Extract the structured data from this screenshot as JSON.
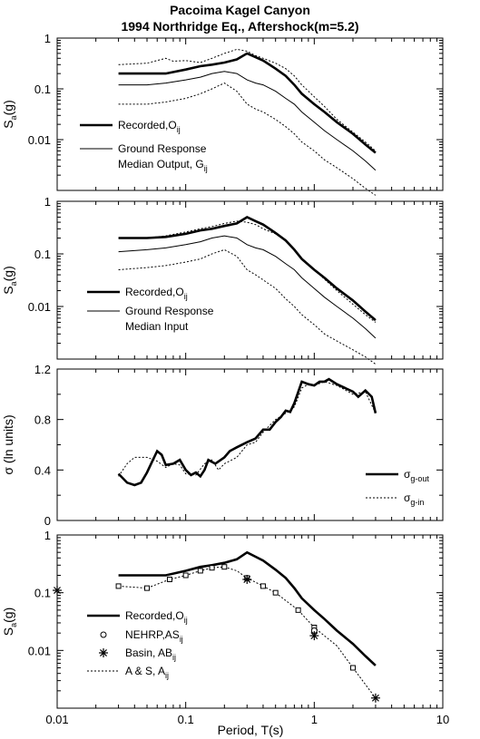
{
  "title_line1": "Pacoima Kagel Canyon",
  "title_line2": "1994 Northridge Eq., Aftershock(m=5.2)",
  "x_axis": {
    "label": "Period, T(s)",
    "scale": "log",
    "range": [
      0.01,
      10
    ],
    "tick_labels": [
      "0.01",
      "0.1",
      "1",
      "10"
    ]
  },
  "chart_data": [
    {
      "type": "line",
      "y_scale": "log",
      "ylim": [
        0.001,
        1
      ],
      "ylabel_base": "S",
      "ylabel_sub": "a",
      "ylabel_tail": "(g)",
      "y_tick_labels": [
        "1",
        "0.1",
        "0.01"
      ],
      "legend": [
        {
          "line1": "Recorded,O",
          "line1_sub": "ij",
          "line2": "",
          "line2_sub": ""
        },
        {
          "line1": "Ground Response",
          "line1_sub": "",
          "line2": "Median Output, G",
          "line2_sub": "ij"
        }
      ],
      "series": [
        {
          "style": "bold",
          "x": [
            0.03,
            0.05,
            0.07,
            0.1,
            0.13,
            0.16,
            0.2,
            0.25,
            0.3,
            0.35,
            0.4,
            0.5,
            0.6,
            0.7,
            0.8,
            1,
            1.2,
            1.5,
            2,
            2.5,
            3
          ],
          "y": [
            0.2,
            0.2,
            0.2,
            0.24,
            0.28,
            0.3,
            0.33,
            0.38,
            0.5,
            0.42,
            0.36,
            0.25,
            0.18,
            0.12,
            0.08,
            0.05,
            0.035,
            0.022,
            0.013,
            0.008,
            0.0055
          ]
        },
        {
          "style": "thin",
          "x": [
            0.03,
            0.05,
            0.07,
            0.1,
            0.13,
            0.16,
            0.2,
            0.25,
            0.3,
            0.35,
            0.4,
            0.5,
            0.6,
            0.7,
            0.8,
            1,
            1.2,
            1.5,
            2,
            2.5,
            3
          ],
          "y": [
            0.12,
            0.12,
            0.13,
            0.15,
            0.17,
            0.2,
            0.22,
            0.2,
            0.15,
            0.13,
            0.12,
            0.09,
            0.065,
            0.05,
            0.035,
            0.022,
            0.015,
            0.01,
            0.006,
            0.0038,
            0.0025
          ]
        },
        {
          "style": "dotted",
          "x": [
            0.03,
            0.05,
            0.07,
            0.08,
            0.1,
            0.13,
            0.16,
            0.2,
            0.25,
            0.3,
            0.35,
            0.4,
            0.5,
            0.6,
            0.7,
            0.8,
            1,
            1.2,
            1.5,
            2,
            2.5,
            3
          ],
          "y": [
            0.3,
            0.32,
            0.4,
            0.35,
            0.36,
            0.33,
            0.4,
            0.5,
            0.6,
            0.55,
            0.45,
            0.4,
            0.32,
            0.25,
            0.18,
            0.12,
            0.07,
            0.045,
            0.025,
            0.014,
            0.009,
            0.006
          ]
        },
        {
          "style": "dotted",
          "x": [
            0.03,
            0.05,
            0.07,
            0.1,
            0.13,
            0.16,
            0.2,
            0.25,
            0.3,
            0.35,
            0.4,
            0.5,
            0.6,
            0.7,
            0.8,
            1,
            1.2,
            1.5,
            2,
            2.5,
            3
          ],
          "y": [
            0.05,
            0.05,
            0.055,
            0.065,
            0.08,
            0.1,
            0.13,
            0.09,
            0.05,
            0.04,
            0.035,
            0.025,
            0.018,
            0.013,
            0.009,
            0.006,
            0.004,
            0.0028,
            0.0017,
            0.0011,
            0.0008
          ]
        }
      ]
    },
    {
      "type": "line",
      "y_scale": "log",
      "ylim": [
        0.001,
        1
      ],
      "ylabel_base": "S",
      "ylabel_sub": "a",
      "ylabel_tail": "(g)",
      "y_tick_labels": [
        "1",
        "0.1",
        "0.01"
      ],
      "legend": [
        {
          "line1": "Recorded,O",
          "line1_sub": "ij",
          "line2": "",
          "line2_sub": ""
        },
        {
          "line1": "Ground Response",
          "line1_sub": "",
          "line2": "Median Input",
          "line2_sub": ""
        }
      ],
      "series": [
        {
          "style": "bold",
          "x": [
            0.03,
            0.05,
            0.07,
            0.1,
            0.13,
            0.16,
            0.2,
            0.25,
            0.3,
            0.35,
            0.4,
            0.5,
            0.6,
            0.7,
            0.8,
            1,
            1.2,
            1.5,
            2,
            2.5,
            3
          ],
          "y": [
            0.2,
            0.2,
            0.21,
            0.24,
            0.28,
            0.3,
            0.34,
            0.38,
            0.5,
            0.42,
            0.36,
            0.25,
            0.18,
            0.12,
            0.08,
            0.05,
            0.035,
            0.022,
            0.013,
            0.008,
            0.0055
          ]
        },
        {
          "style": "thin",
          "x": [
            0.03,
            0.05,
            0.07,
            0.1,
            0.13,
            0.16,
            0.2,
            0.25,
            0.3,
            0.35,
            0.4,
            0.5,
            0.6,
            0.7,
            0.8,
            1,
            1.2,
            1.5,
            2,
            2.5,
            3
          ],
          "y": [
            0.11,
            0.12,
            0.13,
            0.15,
            0.17,
            0.2,
            0.22,
            0.2,
            0.15,
            0.13,
            0.12,
            0.09,
            0.065,
            0.05,
            0.035,
            0.022,
            0.015,
            0.01,
            0.006,
            0.0038,
            0.0025
          ]
        },
        {
          "style": "dotted",
          "x": [
            0.03,
            0.05,
            0.07,
            0.1,
            0.13,
            0.16,
            0.2,
            0.25,
            0.3,
            0.35,
            0.4,
            0.5,
            0.6,
            0.7,
            0.8,
            1,
            1.2,
            1.5,
            2,
            2.5,
            3
          ],
          "y": [
            0.2,
            0.2,
            0.22,
            0.26,
            0.3,
            0.33,
            0.38,
            0.42,
            0.4,
            0.36,
            0.3,
            0.24,
            0.18,
            0.12,
            0.08,
            0.05,
            0.033,
            0.02,
            0.011,
            0.007,
            0.005
          ]
        },
        {
          "style": "dotted",
          "x": [
            0.03,
            0.05,
            0.07,
            0.1,
            0.13,
            0.16,
            0.2,
            0.25,
            0.3,
            0.35,
            0.4,
            0.5,
            0.6,
            0.7,
            0.8,
            1,
            1.2,
            1.5,
            2,
            2.5,
            3
          ],
          "y": [
            0.05,
            0.055,
            0.06,
            0.07,
            0.08,
            0.1,
            0.12,
            0.09,
            0.05,
            0.04,
            0.032,
            0.022,
            0.014,
            0.01,
            0.007,
            0.0045,
            0.003,
            0.0022,
            0.0015,
            0.0011,
            0.0008
          ]
        }
      ]
    },
    {
      "type": "line",
      "y_scale": "linear",
      "ylim": [
        0,
        1.2
      ],
      "ylabel_base": "σ (ln units)",
      "ylabel_sub": "",
      "ylabel_tail": "",
      "y_tick_labels": [
        "1.2",
        "0.8",
        "0.4",
        "0"
      ],
      "legend": [
        {
          "line1": "σ",
          "line1_sub": "g-out",
          "line2": "",
          "line2_sub": ""
        },
        {
          "line1": "σ",
          "line1_sub": "g-in",
          "line2": "",
          "line2_sub": ""
        }
      ],
      "series": [
        {
          "style": "bold",
          "x": [
            0.03,
            0.035,
            0.04,
            0.045,
            0.05,
            0.055,
            0.06,
            0.065,
            0.07,
            0.08,
            0.09,
            0.1,
            0.11,
            0.12,
            0.13,
            0.14,
            0.15,
            0.17,
            0.2,
            0.22,
            0.25,
            0.3,
            0.35,
            0.4,
            0.45,
            0.5,
            0.55,
            0.6,
            0.65,
            0.7,
            0.8,
            0.9,
            1,
            1.1,
            1.2,
            1.3,
            1.5,
            2,
            2.2,
            2.5,
            2.8,
            3
          ],
          "y": [
            0.37,
            0.3,
            0.28,
            0.3,
            0.38,
            0.47,
            0.55,
            0.52,
            0.44,
            0.45,
            0.48,
            0.4,
            0.36,
            0.38,
            0.35,
            0.4,
            0.48,
            0.45,
            0.5,
            0.55,
            0.58,
            0.62,
            0.65,
            0.72,
            0.72,
            0.78,
            0.82,
            0.87,
            0.86,
            0.93,
            1.1,
            1.08,
            1.07,
            1.1,
            1.1,
            1.12,
            1.08,
            1.02,
            0.98,
            1.03,
            0.98,
            0.85
          ]
        },
        {
          "style": "dotted",
          "x": [
            0.03,
            0.035,
            0.04,
            0.05,
            0.06,
            0.07,
            0.08,
            0.09,
            0.1,
            0.12,
            0.14,
            0.16,
            0.18,
            0.2,
            0.25,
            0.3,
            0.35,
            0.4,
            0.5,
            0.6,
            0.7,
            0.8,
            0.9,
            1,
            1.2,
            1.5,
            2,
            2.5,
            3
          ],
          "y": [
            0.35,
            0.45,
            0.5,
            0.5,
            0.47,
            0.42,
            0.45,
            0.44,
            0.37,
            0.36,
            0.45,
            0.48,
            0.4,
            0.45,
            0.5,
            0.6,
            0.62,
            0.7,
            0.8,
            0.85,
            0.9,
            1.05,
            1.08,
            1.07,
            1.1,
            1.07,
            1.0,
            1.02,
            0.85
          ]
        }
      ]
    },
    {
      "type": "line",
      "y_scale": "log",
      "ylim": [
        0.001,
        1
      ],
      "ylabel_base": "S",
      "ylabel_sub": "a",
      "ylabel_tail": "(g)",
      "y_tick_labels": [
        "1",
        "0.1",
        "0.01"
      ],
      "legend": [
        {
          "line1": "Recorded,O",
          "line1_sub": "ij",
          "line2": "",
          "line2_sub": ""
        },
        {
          "line1": "NEHRP,AS",
          "line1_sub": "ij",
          "line2": "",
          "line2_sub": ""
        },
        {
          "line1": "Basin, AB",
          "line1_sub": "ij",
          "line2": "",
          "line2_sub": ""
        },
        {
          "line1": "A & S, A",
          "line1_sub": "ij",
          "line2": "",
          "line2_sub": ""
        }
      ],
      "series": [
        {
          "style": "bold",
          "x": [
            0.03,
            0.05,
            0.07,
            0.1,
            0.13,
            0.16,
            0.2,
            0.25,
            0.3,
            0.35,
            0.4,
            0.5,
            0.6,
            0.7,
            0.8,
            1,
            1.2,
            1.5,
            2,
            2.5,
            3
          ],
          "y": [
            0.2,
            0.2,
            0.2,
            0.24,
            0.28,
            0.3,
            0.33,
            0.38,
            0.5,
            0.42,
            0.36,
            0.25,
            0.18,
            0.12,
            0.08,
            0.05,
            0.035,
            0.022,
            0.013,
            0.008,
            0.0055
          ]
        },
        {
          "style": "dotted",
          "x": [
            0.03,
            0.05,
            0.075,
            0.1,
            0.13,
            0.16,
            0.2,
            0.25,
            0.3,
            0.4,
            0.5,
            0.75,
            1,
            1.5,
            2,
            3
          ],
          "y": [
            0.13,
            0.12,
            0.17,
            0.2,
            0.24,
            0.27,
            0.28,
            0.24,
            0.18,
            0.13,
            0.1,
            0.05,
            0.025,
            0.012,
            0.005,
            0.0015
          ]
        },
        {
          "style": "squares",
          "x": [
            0.03,
            0.05,
            0.075,
            0.1,
            0.13,
            0.16,
            0.2,
            0.3,
            0.4,
            0.5,
            0.75,
            1,
            2
          ],
          "y": [
            0.13,
            0.12,
            0.17,
            0.2,
            0.24,
            0.27,
            0.28,
            0.18,
            0.13,
            0.1,
            0.05,
            0.025,
            0.005
          ]
        },
        {
          "style": "circles",
          "x": [
            1
          ],
          "y": [
            0.022
          ]
        },
        {
          "style": "stars",
          "x": [
            0.01,
            0.3,
            1,
            3
          ],
          "y": [
            0.11,
            0.17,
            0.018,
            0.0015
          ]
        }
      ]
    }
  ]
}
